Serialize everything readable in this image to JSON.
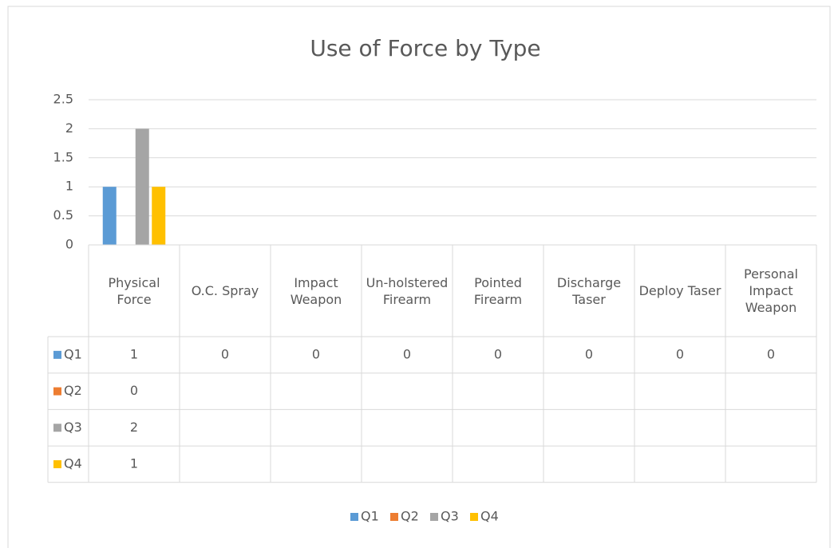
{
  "chart_data": {
    "type": "bar",
    "title": "Use of Force by Type",
    "categories": [
      "Physical Force",
      "O.C. Spray",
      "Impact Weapon",
      "Un-holstered Firearm",
      "Pointed Firearm",
      "Discharge Taser",
      "Deploy Taser",
      "Personal Impact Weapon"
    ],
    "series": [
      {
        "name": "Q1",
        "color": "#5b9bd5",
        "values": [
          1,
          0,
          0,
          0,
          0,
          0,
          0,
          0
        ]
      },
      {
        "name": "Q2",
        "color": "#ed7d31",
        "values": [
          0,
          null,
          null,
          null,
          null,
          null,
          null,
          null
        ]
      },
      {
        "name": "Q3",
        "color": "#a5a5a5",
        "values": [
          2,
          null,
          null,
          null,
          null,
          null,
          null,
          null
        ]
      },
      {
        "name": "Q4",
        "color": "#ffc000",
        "values": [
          1,
          null,
          null,
          null,
          null,
          null,
          null,
          null
        ]
      }
    ],
    "ylim": [
      0,
      2.5
    ],
    "yticks": [
      0,
      0.5,
      1,
      1.5,
      2,
      2.5
    ],
    "grid": true,
    "data_table": true,
    "legend": "bottom"
  }
}
